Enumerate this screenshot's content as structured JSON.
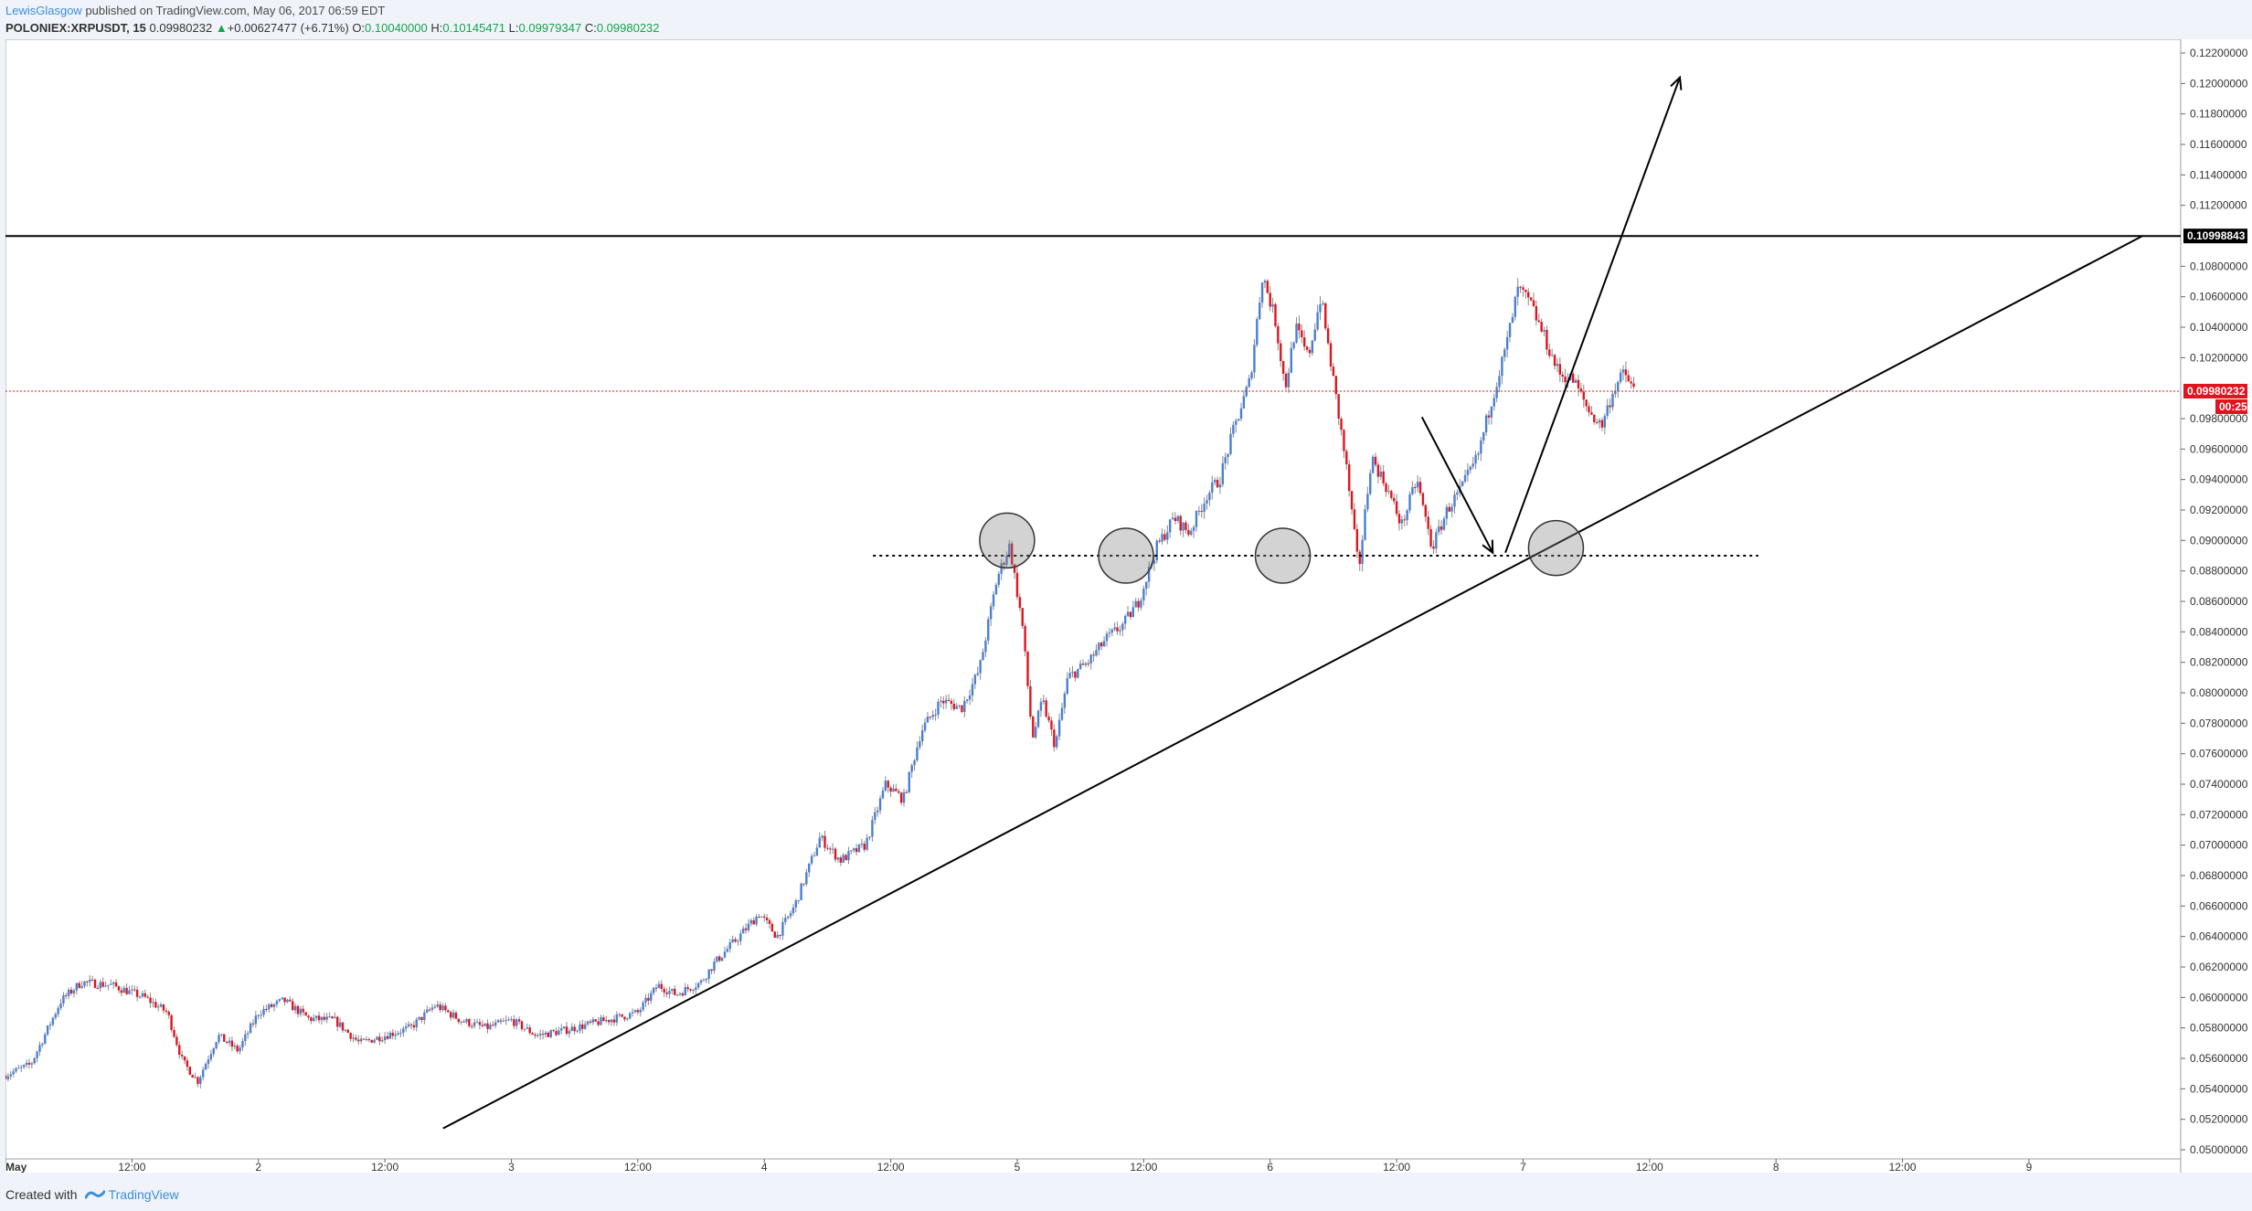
{
  "header": {
    "author": "LewisGlasgow",
    "published": "published on TradingView.com, May 06, 2017 06:59 EDT",
    "symbol": "POLONIEX:XRPUSDT, 15",
    "last": "0.09980232",
    "change": "+0.00627477 (+6.71%)",
    "open_label": "O:",
    "open": "0.10040000",
    "high_label": "H:",
    "high": "0.10145471",
    "low_label": "L:",
    "low": "0.09979347",
    "close_label": "C:",
    "close": "0.09980232"
  },
  "footer": {
    "created_with": "Created with",
    "brand": "TradingView"
  },
  "colors": {
    "up": "#4a7fd4",
    "down": "#e0141e",
    "price_line": "#e0141e",
    "resistance": "#000000",
    "brand": "#3a8fd8"
  },
  "chart_data": {
    "type": "candlestick",
    "y_range": [
      0.0494,
      0.1229
    ],
    "y_tick_labels": [
      "0.05000000",
      "0.05200000",
      "0.05400000",
      "0.05600000",
      "0.05800000",
      "0.06000000",
      "0.06200000",
      "0.06400000",
      "0.06600000",
      "0.06800000",
      "0.07000000",
      "0.07200000",
      "0.07400000",
      "0.07600000",
      "0.07800000",
      "0.08000000",
      "0.08200000",
      "0.08400000",
      "0.08600000",
      "0.08800000",
      "0.09000000",
      "0.09200000",
      "0.09400000",
      "0.09600000",
      "0.09800000",
      "0.10200000",
      "0.10400000",
      "0.10600000",
      "0.10800000",
      "0.11200000",
      "0.11400000",
      "0.11600000",
      "0.11800000",
      "0.12000000",
      "0.12200000"
    ],
    "x_tick_labels": [
      "May",
      "12:00",
      "2",
      "12:00",
      "3",
      "12:00",
      "4",
      "12:00",
      "5",
      "12:00",
      "6",
      "12:00",
      "7",
      "12:00",
      "8",
      "12:00",
      "9"
    ],
    "x_range_days": [
      0,
      8.6
    ],
    "resistance_level": 0.10998843,
    "resistance_label": "0.10998843",
    "current_price": 0.09980232,
    "current_price_label": "0.09980232",
    "countdown_label": "00:25",
    "support_dotted_level": 0.089,
    "grid": false,
    "price_anchors": [
      [
        0.0,
        0.0549
      ],
      [
        0.1,
        0.0556
      ],
      [
        0.22,
        0.0598
      ],
      [
        0.3,
        0.061
      ],
      [
        0.42,
        0.0608
      ],
      [
        0.55,
        0.06
      ],
      [
        0.64,
        0.059
      ],
      [
        0.7,
        0.0558
      ],
      [
        0.76,
        0.0545
      ],
      [
        0.84,
        0.0575
      ],
      [
        0.92,
        0.0565
      ],
      [
        1.0,
        0.059
      ],
      [
        1.1,
        0.0598
      ],
      [
        1.2,
        0.0586
      ],
      [
        1.3,
        0.0585
      ],
      [
        1.4,
        0.057
      ],
      [
        1.5,
        0.0575
      ],
      [
        1.6,
        0.058
      ],
      [
        1.7,
        0.0595
      ],
      [
        1.8,
        0.0585
      ],
      [
        1.9,
        0.058
      ],
      [
        2.0,
        0.0585
      ],
      [
        2.1,
        0.0575
      ],
      [
        2.2,
        0.0578
      ],
      [
        2.3,
        0.0582
      ],
      [
        2.4,
        0.0586
      ],
      [
        2.5,
        0.059
      ],
      [
        2.58,
        0.0608
      ],
      [
        2.65,
        0.0602
      ],
      [
        2.75,
        0.061
      ],
      [
        2.8,
        0.0622
      ],
      [
        2.9,
        0.064
      ],
      [
        2.98,
        0.0655
      ],
      [
        3.05,
        0.064
      ],
      [
        3.12,
        0.066
      ],
      [
        3.22,
        0.0705
      ],
      [
        3.3,
        0.069
      ],
      [
        3.4,
        0.07
      ],
      [
        3.48,
        0.074
      ],
      [
        3.55,
        0.073
      ],
      [
        3.62,
        0.0775
      ],
      [
        3.7,
        0.0795
      ],
      [
        3.78,
        0.079
      ],
      [
        3.85,
        0.0815
      ],
      [
        3.92,
        0.0875
      ],
      [
        3.97,
        0.0897
      ],
      [
        4.02,
        0.0845
      ],
      [
        4.06,
        0.077
      ],
      [
        4.1,
        0.0795
      ],
      [
        4.15,
        0.0765
      ],
      [
        4.2,
        0.081
      ],
      [
        4.28,
        0.082
      ],
      [
        4.35,
        0.0835
      ],
      [
        4.42,
        0.0845
      ],
      [
        4.48,
        0.086
      ],
      [
        4.55,
        0.0895
      ],
      [
        4.62,
        0.0915
      ],
      [
        4.68,
        0.0905
      ],
      [
        4.75,
        0.093
      ],
      [
        4.8,
        0.094
      ],
      [
        4.86,
        0.0975
      ],
      [
        4.92,
        0.1005
      ],
      [
        4.97,
        0.1075
      ],
      [
        5.02,
        0.1045
      ],
      [
        5.06,
        0.1
      ],
      [
        5.1,
        0.104
      ],
      [
        5.15,
        0.102
      ],
      [
        5.2,
        0.106
      ],
      [
        5.25,
        0.1005
      ],
      [
        5.3,
        0.095
      ],
      [
        5.35,
        0.088
      ],
      [
        5.4,
        0.0955
      ],
      [
        5.46,
        0.0935
      ],
      [
        5.52,
        0.091
      ],
      [
        5.58,
        0.094
      ],
      [
        5.64,
        0.0895
      ],
      [
        5.7,
        0.092
      ],
      [
        5.76,
        0.0935
      ],
      [
        5.82,
        0.0955
      ],
      [
        5.88,
        0.0995
      ],
      [
        5.93,
        0.1025
      ],
      [
        5.98,
        0.1065
      ],
      [
        6.03,
        0.1055
      ],
      [
        6.08,
        0.1035
      ],
      [
        6.14,
        0.101
      ],
      [
        6.2,
        0.1005
      ],
      [
        6.26,
        0.0985
      ],
      [
        6.31,
        0.0975
      ],
      [
        6.36,
        0.1
      ],
      [
        6.4,
        0.101
      ],
      [
        6.44,
        0.0998
      ]
    ]
  },
  "annotations": {
    "trendline": [
      [
        1.73,
        0.0514
      ],
      [
        8.45,
        0.11
      ]
    ],
    "arrow_down": [
      [
        5.6,
        0.0981
      ],
      [
        5.88,
        0.0892
      ]
    ],
    "arrow_up": [
      [
        5.93,
        0.0892
      ],
      [
        6.62,
        0.1204
      ]
    ],
    "circles": [
      [
        3.96,
        0.09
      ],
      [
        4.43,
        0.089
      ],
      [
        5.05,
        0.089
      ],
      [
        6.13,
        0.0895
      ]
    ]
  }
}
